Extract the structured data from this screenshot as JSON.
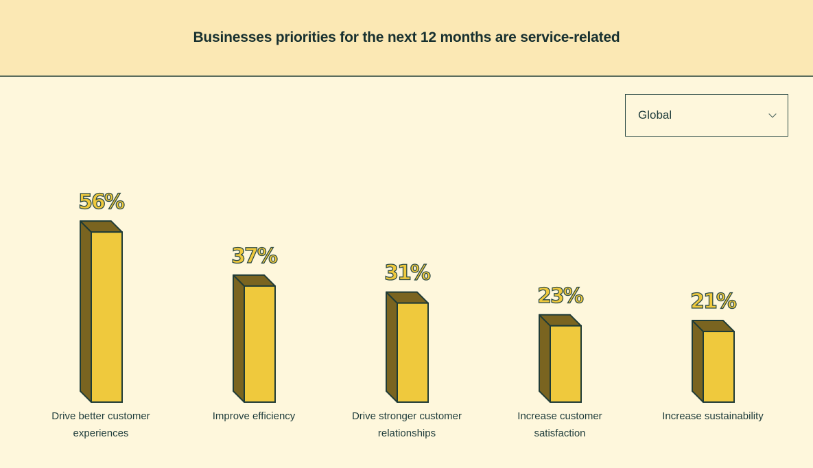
{
  "header": {
    "title": "Businesses priorities for the next 12 months are service-related"
  },
  "region_select": {
    "value": "Global",
    "icon": "chevron-down-icon"
  },
  "colors": {
    "bar_front": "#efc93d",
    "bar_side": "#7a6420",
    "outline": "#1f3b36",
    "header_bg": "#fbe8b4",
    "page_bg": "#fef7dc"
  },
  "chart_data": {
    "type": "bar",
    "style": "3d",
    "categories": [
      [
        "Drive better customer",
        "experiences"
      ],
      [
        "Improve efficiency"
      ],
      [
        "Drive stronger customer",
        "relationships"
      ],
      [
        "Increase customer",
        "satisfaction"
      ],
      [
        "Increase sustainability"
      ]
    ],
    "values": [
      56,
      37,
      31,
      23,
      21
    ],
    "data_labels": [
      "56%",
      "37%",
      "31%",
      "23%",
      "21%"
    ],
    "unit": "%",
    "grid": false,
    "legend": "none"
  }
}
